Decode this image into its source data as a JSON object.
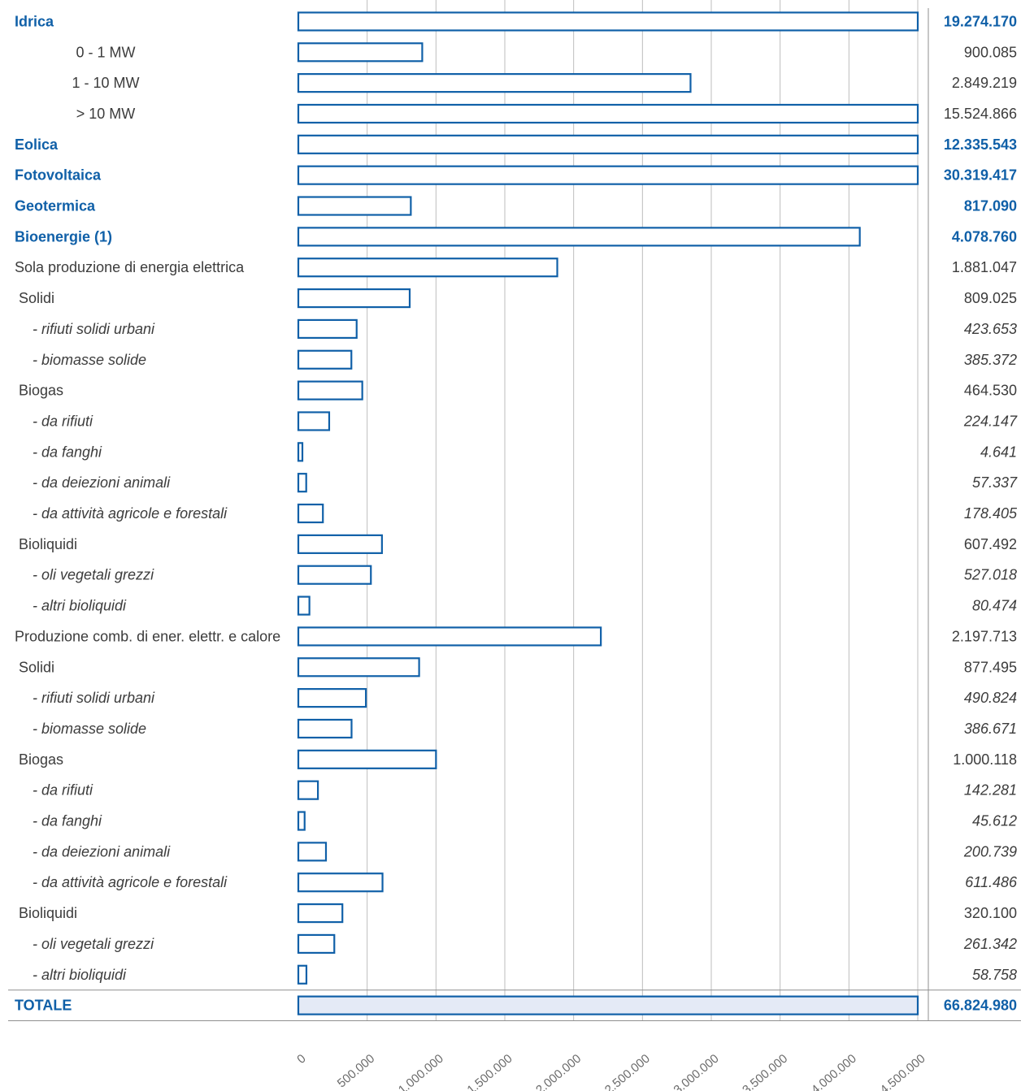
{
  "colors": {
    "accent": "#1060a8",
    "text": "#3c3c3c",
    "grid": "#bdbdbd",
    "total_fill": "#e4eaf6"
  },
  "chart_data": {
    "type": "bar",
    "orientation": "horizontal",
    "xlim": [
      0,
      4500000
    ],
    "x_ticks": [
      "0",
      "500.000",
      "1.000.000",
      "1.500.000",
      "2.000.000",
      "2.500.000",
      "3.000.000",
      "3.500.000",
      "4.000.000",
      "4.500.000"
    ],
    "grid": true,
    "rows": [
      {
        "label": "Idrica",
        "value": 19274170,
        "value_label": "19.274.170",
        "style": "bold"
      },
      {
        "label": "0 - 1 MW",
        "value": 900085,
        "value_label": "900.085",
        "style": "normal"
      },
      {
        "label": "1 - 10 MW",
        "value": 2849219,
        "value_label": "2.849.219",
        "style": "normal"
      },
      {
        "label": "> 10 MW",
        "value": 15524866,
        "value_label": "15.524.866",
        "style": "normal"
      },
      {
        "label": "Eolica",
        "value": 12335543,
        "value_label": "12.335.543",
        "style": "bold"
      },
      {
        "label": "Fotovoltaica",
        "value": 30319417,
        "value_label": "30.319.417",
        "style": "bold"
      },
      {
        "label": "Geotermica",
        "value": 817090,
        "value_label": "817.090",
        "style": "bold"
      },
      {
        "label": "Bioenergie (1)",
        "value": 4078760,
        "value_label": "4.078.760",
        "style": "bold"
      },
      {
        "label": "Sola produzione di energia elettrica",
        "value": 1881047,
        "value_label": "1.881.047",
        "style": "normal"
      },
      {
        "label": "Solidi",
        "value": 809025,
        "value_label": "809.025",
        "style": "normal"
      },
      {
        "label": "- rifiuti solidi urbani",
        "value": 423653,
        "value_label": "423.653",
        "style": "italic"
      },
      {
        "label": "- biomasse solide",
        "value": 385372,
        "value_label": "385.372",
        "style": "italic"
      },
      {
        "label": "Biogas",
        "value": 464530,
        "value_label": "464.530",
        "style": "normal"
      },
      {
        "label": "- da rifiuti",
        "value": 224147,
        "value_label": "224.147",
        "style": "italic"
      },
      {
        "label": "- da fanghi",
        "value": 4641,
        "value_label": "4.641",
        "style": "italic"
      },
      {
        "label": "- da deiezioni animali",
        "value": 57337,
        "value_label": "57.337",
        "style": "italic"
      },
      {
        "label": "- da attività agricole e forestali",
        "value": 178405,
        "value_label": "178.405",
        "style": "italic"
      },
      {
        "label": "Bioliquidi",
        "value": 607492,
        "value_label": "607.492",
        "style": "normal"
      },
      {
        "label": "- oli vegetali grezzi",
        "value": 527018,
        "value_label": "527.018",
        "style": "italic"
      },
      {
        "label": "- altri bioliquidi",
        "value": 80474,
        "value_label": "80.474",
        "style": "italic"
      },
      {
        "label": "Produzione comb. di ener. elettr. e calore",
        "value": 2197713,
        "value_label": "2.197.713",
        "style": "normal"
      },
      {
        "label": "Solidi",
        "value": 877495,
        "value_label": "877.495",
        "style": "normal"
      },
      {
        "label": "- rifiuti solidi urbani",
        "value": 490824,
        "value_label": "490.824",
        "style": "italic"
      },
      {
        "label": "- biomasse solide",
        "value": 386671,
        "value_label": "386.671",
        "style": "italic"
      },
      {
        "label": "Biogas",
        "value": 1000118,
        "value_label": "1.000.118",
        "style": "normal"
      },
      {
        "label": "- da rifiuti",
        "value": 142281,
        "value_label": "142.281",
        "style": "italic"
      },
      {
        "label": "- da fanghi",
        "value": 45612,
        "value_label": "45.612",
        "style": "italic"
      },
      {
        "label": "- da deiezioni animali",
        "value": 200739,
        "value_label": "200.739",
        "style": "italic"
      },
      {
        "label": "- da attività agricole e forestali",
        "value": 611486,
        "value_label": "611.486",
        "style": "italic"
      },
      {
        "label": "Bioliquidi",
        "value": 320100,
        "value_label": "320.100",
        "style": "normal"
      },
      {
        "label": "- oli vegetali grezzi",
        "value": 261342,
        "value_label": "261.342",
        "style": "italic"
      },
      {
        "label": "- altri bioliquidi",
        "value": 58758,
        "value_label": "58.758",
        "style": "italic"
      }
    ],
    "total": {
      "label": "TOTALE",
      "value": 66824980,
      "value_label": "66.824.980"
    }
  }
}
